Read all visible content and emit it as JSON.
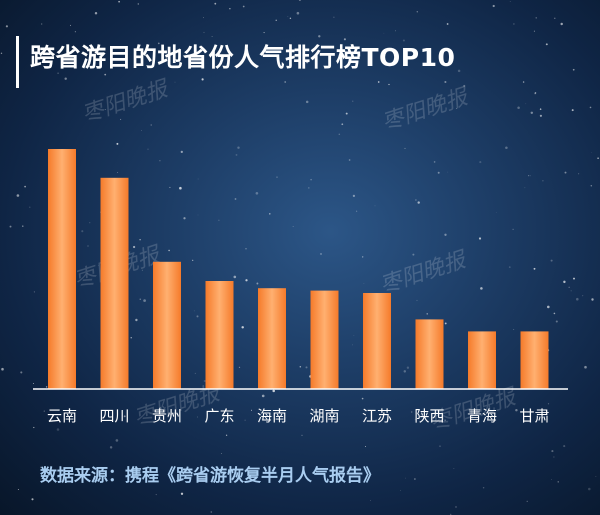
{
  "title": "跨省游目的地省份人气排行榜TOP10",
  "source": "数据来源：携程《跨省游恢复半月人气报告》",
  "watermark": "枣阳晚报",
  "colors": {
    "bar": "#f57a2a",
    "bar_highlight": "#ffb070",
    "axis": "#ffffff",
    "title": "#ffffff",
    "source": "#a9cdf0"
  },
  "chart_data": {
    "type": "bar",
    "categories": [
      "云南",
      "四川",
      "贵州",
      "广东",
      "海南",
      "湖南",
      "江苏",
      "陕西",
      "青海",
      "甘肃"
    ],
    "values": [
      100,
      88,
      53,
      45,
      42,
      41,
      40,
      29,
      24,
      24
    ],
    "title": "跨省游目的地省份人气排行榜TOP10",
    "xlabel": "",
    "ylabel": "",
    "ylim": [
      0,
      100
    ],
    "grid": false,
    "legend": "none"
  }
}
